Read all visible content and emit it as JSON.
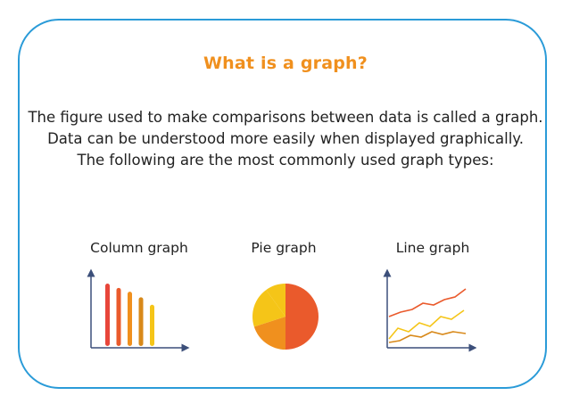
{
  "title": "What is a graph?",
  "intro": {
    "line1": "The figure used to make comparisons between data is called a graph.",
    "line2": "Data can be understood more easily when displayed graphically.",
    "line3": "The following are the most commonly used graph types:"
  },
  "graphs": {
    "column": {
      "label": "Column graph",
      "values": [
        1.0,
        0.93,
        0.87,
        0.78,
        0.66
      ]
    },
    "pie": {
      "label": "Pie graph",
      "values": [
        50,
        20,
        20,
        10
      ]
    },
    "line": {
      "label": "Line graph"
    }
  },
  "colors": {
    "border": "#2a9bd8",
    "title": "#f0901e",
    "axis": "#3c4f7a",
    "red": "#e8463a",
    "red_orange": "#ea5a2c",
    "orange": "#f0901e",
    "dark_orange": "#d8891a",
    "yellow": "#f5c518"
  }
}
